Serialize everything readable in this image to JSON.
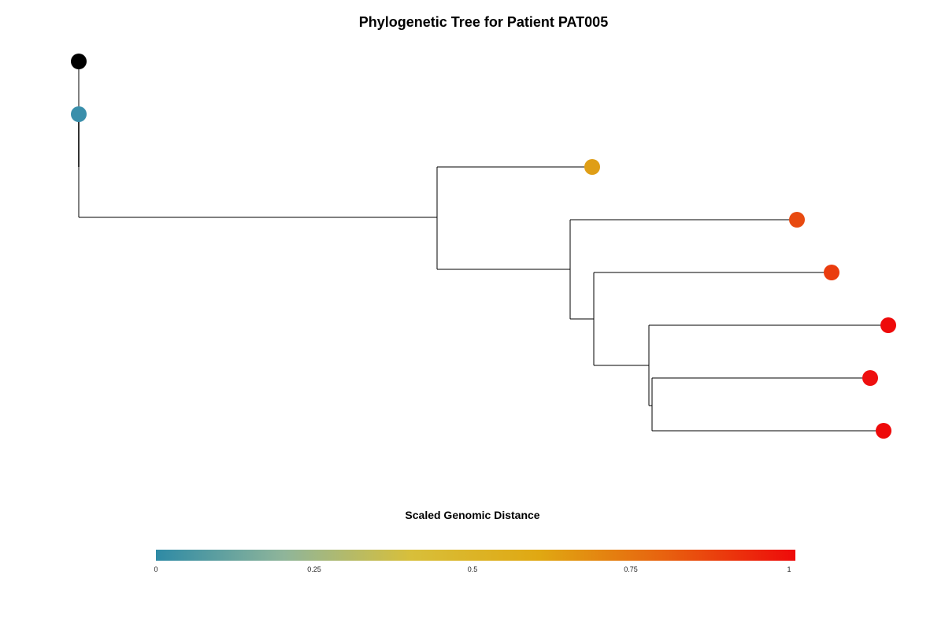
{
  "title": "Phylogenetic Tree for Patient PAT005",
  "legend": {
    "title": "Scaled Genomic Distance",
    "ticks": [
      {
        "value": 0,
        "label": "0"
      },
      {
        "value": 0.25,
        "label": "0.25"
      },
      {
        "value": 0.5,
        "label": "0.5"
      },
      {
        "value": 0.75,
        "label": "0.75"
      },
      {
        "value": 1,
        "label": "1"
      }
    ],
    "gradient_colors": [
      "#2e8aa5",
      "#8fb59a",
      "#d8bf3a",
      "#e0a812",
      "#e8600f",
      "#ee0a0a"
    ]
  },
  "colors": {
    "root": "#000000",
    "branch": "#000000"
  },
  "chart_data": {
    "type": "tree",
    "leaves": [
      {
        "id": "n0",
        "distance": 0.0,
        "color": "#000000"
      },
      {
        "id": "n1",
        "distance": 0.0,
        "color": "#3a8fab"
      },
      {
        "id": "n2",
        "distance": 0.6,
        "color": "#df9e16"
      },
      {
        "id": "n3",
        "distance": 0.9,
        "color": "#e84a10"
      },
      {
        "id": "n4",
        "distance": 0.95,
        "color": "#ea3c0e"
      },
      {
        "id": "n5",
        "distance": 1.0,
        "color": "#ee0a0a"
      },
      {
        "id": "n6",
        "distance": 0.98,
        "color": "#ee1010"
      },
      {
        "id": "n7",
        "distance": 0.99,
        "color": "#ee0a0a"
      }
    ]
  }
}
